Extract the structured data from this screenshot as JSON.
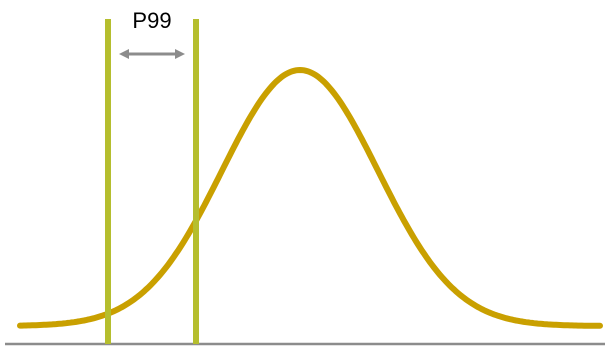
{
  "label": "P99",
  "colors": {
    "curve": "#C9A000",
    "markers": "#B5BE2E",
    "arrow": "#8C8C8C",
    "baseline": "#8C8C8C",
    "text": "#000000",
    "background": "#FFFFFF"
  }
}
